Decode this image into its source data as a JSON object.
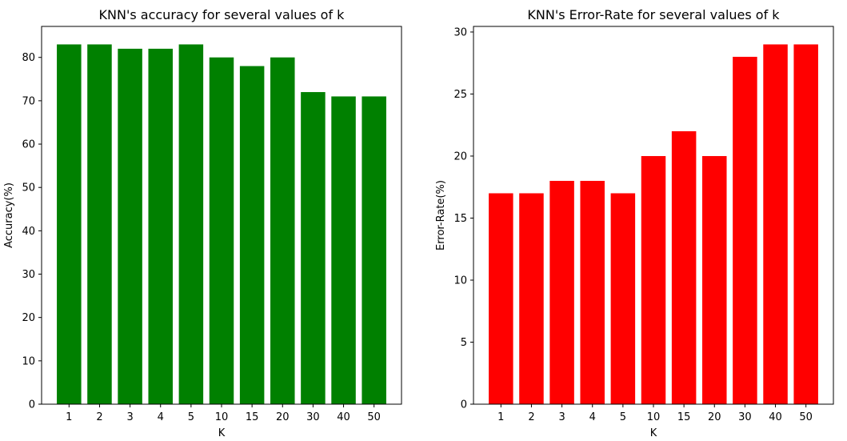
{
  "chart_data": [
    {
      "type": "bar",
      "title": "KNN's accuracy for several values of k",
      "xlabel": "K",
      "ylabel": "Accuracy(%)",
      "categories": [
        "1",
        "2",
        "3",
        "4",
        "5",
        "10",
        "15",
        "20",
        "30",
        "40",
        "50"
      ],
      "values": [
        83,
        83,
        82,
        82,
        83,
        80,
        78,
        80,
        72,
        71,
        71
      ],
      "ylim": [
        0,
        87.15
      ],
      "yticks": [
        0,
        10,
        20,
        30,
        40,
        50,
        60,
        70,
        80
      ],
      "color": "#008000",
      "grid": false
    },
    {
      "type": "bar",
      "title": "KNN's Error-Rate for several values of k",
      "xlabel": "K",
      "ylabel": "Error-Rate(%)",
      "categories": [
        "1",
        "2",
        "3",
        "4",
        "5",
        "10",
        "15",
        "20",
        "30",
        "40",
        "50"
      ],
      "values": [
        17,
        17,
        18,
        18,
        17,
        20,
        22,
        20,
        28,
        29,
        29
      ],
      "ylim": [
        0,
        30.45
      ],
      "yticks": [
        0,
        5,
        10,
        15,
        20,
        25,
        30
      ],
      "color": "#ff0000",
      "grid": false
    }
  ]
}
